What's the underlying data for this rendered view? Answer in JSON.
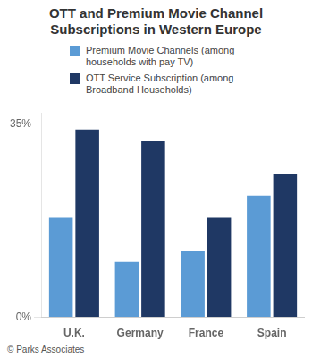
{
  "chart_data": {
    "type": "bar",
    "title": "OTT and Premium Movie Channel\nSubscriptions in Western Europe",
    "categories": [
      "U.K.",
      "Germany",
      "France",
      "Spain"
    ],
    "series": [
      {
        "name": "Premium Movie Channels (among\nhouseholds with pay TV)",
        "color": "#5b9bd5",
        "values": [
          18,
          10,
          12,
          22
        ]
      },
      {
        "name": "OTT Service Subscription (among\nBroadband Households)",
        "color": "#1f3864",
        "values": [
          34,
          32,
          18,
          26
        ]
      }
    ],
    "ylim": [
      0,
      37
    ],
    "yticks": [
      {
        "value": 0,
        "label": "0%"
      },
      {
        "value": 35,
        "label": "35%"
      }
    ],
    "grid": true,
    "legend": "top",
    "footer": "© Parks Associates"
  }
}
